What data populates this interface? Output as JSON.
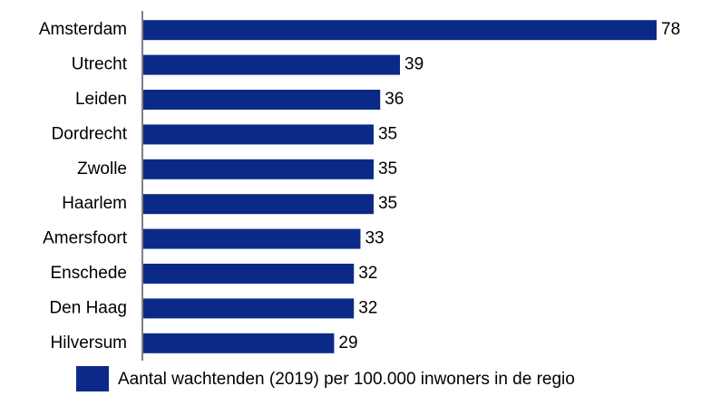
{
  "chart_data": {
    "type": "bar",
    "orientation": "horizontal",
    "categories": [
      "Amsterdam",
      "Utrecht",
      "Leiden",
      "Dordrecht",
      "Zwolle",
      "Haarlem",
      "Amersfoort",
      "Enschede",
      "Den Haag",
      "Hilversum"
    ],
    "series": [
      {
        "name": "Aantal wachtenden (2019) per 100.000 inwoners in de regio",
        "color": "#0b2a88",
        "values": [
          78,
          39,
          36,
          35,
          35,
          35,
          33,
          32,
          32,
          29
        ]
      }
    ],
    "legend": "bottom"
  }
}
